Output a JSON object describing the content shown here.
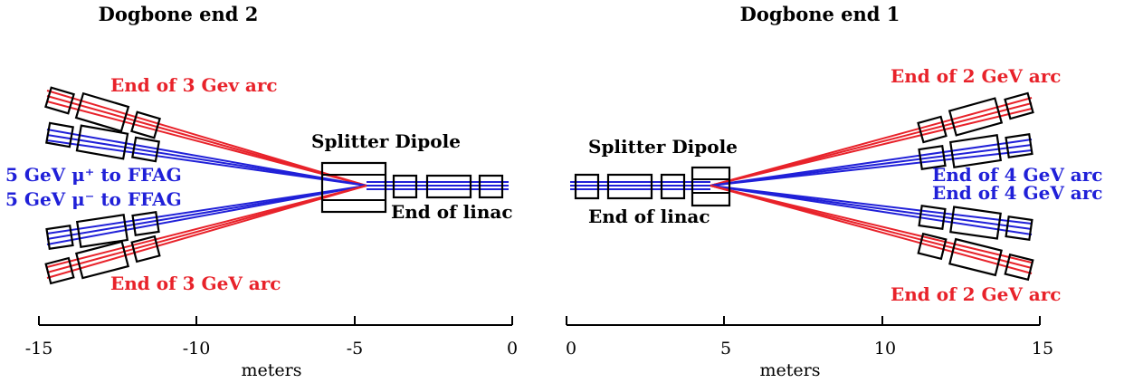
{
  "colors": {
    "red": "#e8222a",
    "blue": "#2020d8",
    "black": "#000000"
  },
  "panels": [
    {
      "id": "end2",
      "title": "Dogbone end 2",
      "axis_label": "meters",
      "xlim": [
        -15,
        0
      ],
      "ticks": [
        -15,
        -10,
        -5,
        0
      ],
      "tick_labels": [
        "-15",
        "-10",
        "-5",
        "0"
      ],
      "labels": {
        "arc_top": "End of 3 Gev arc",
        "arc_bottom": "End of 3 GeV arc",
        "splitter": "Splitter Dipole",
        "linac": "End of linac",
        "ffag_plus": "5 GeV μ⁺ to FFAG",
        "ffag_minus": "5 GeV μ⁻ to FFAG"
      }
    },
    {
      "id": "end1",
      "title": "Dogbone end 1",
      "axis_label": "meters",
      "xlim": [
        0,
        15
      ],
      "ticks": [
        0,
        5,
        10,
        15
      ],
      "tick_labels": [
        "0",
        "5",
        "10",
        "15"
      ],
      "labels": {
        "arc_top": "End of 2 GeV arc",
        "arc_bottom": "End of 2 GeV arc",
        "splitter": "Splitter Dipole",
        "linac": "End of linac",
        "arc4_a": "End of 4 GeV arc",
        "arc4_b": "End of 4 GeV arc"
      }
    }
  ]
}
